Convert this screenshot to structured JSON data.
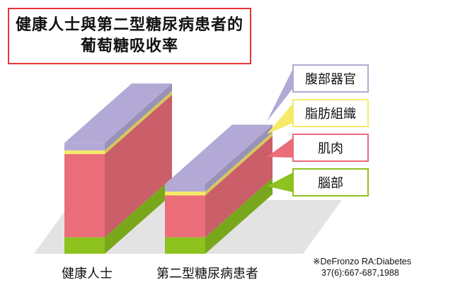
{
  "title": {
    "line1": "健康人士與第二型糖尿病患者的",
    "line2": "葡萄糖吸收率"
  },
  "chart_data": {
    "type": "bar",
    "stacked": true,
    "three_d": true,
    "categories": [
      "健康人士",
      "第二型糖尿病患者"
    ],
    "series": [
      {
        "name": "腦部",
        "color": "#8dc21f",
        "values": [
          22,
          22
        ]
      },
      {
        "name": "肌肉",
        "color": "#eb6d7a",
        "values": [
          111,
          56
        ]
      },
      {
        "name": "脂肪組織",
        "color": "#f6ea68",
        "values": [
          5,
          5
        ]
      },
      {
        "name": "腹部器官",
        "color": "#b3a9d6",
        "values": [
          10,
          10
        ]
      }
    ],
    "legend": "right",
    "grid": false
  },
  "source": {
    "line1": "※DeFronzo RA:Diabetes",
    "line2": "37(6):667-687,1988"
  }
}
